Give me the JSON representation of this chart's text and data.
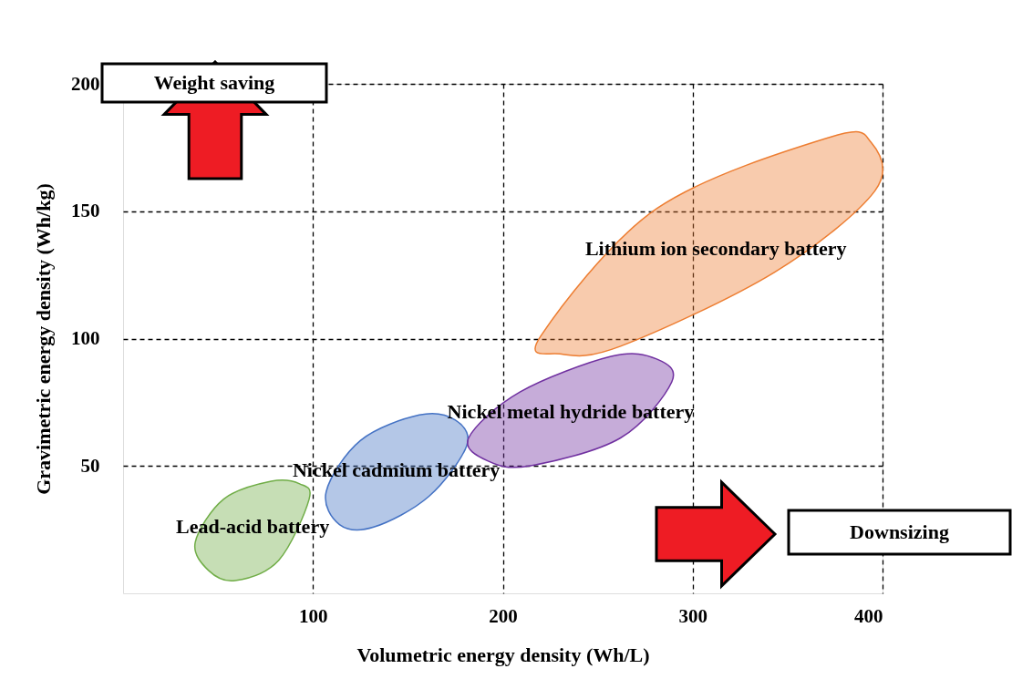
{
  "chart_data": {
    "type": "area",
    "xlabel": "Volumetric energy density (Wh/L)",
    "ylabel": "Gravimetric energy density (Wh/kg)",
    "xlim": [
      0,
      400
    ],
    "ylim": [
      0,
      200
    ],
    "xticks": [
      100,
      200,
      300,
      400
    ],
    "yticks": [
      50,
      100,
      150,
      200
    ],
    "grid": true,
    "legend": false,
    "marker": "none",
    "line_style": "solid",
    "annotations": [
      "Weight saving",
      "Downsizing"
    ],
    "series": [
      {
        "name": "Lead-acid battery",
        "color": "#70ad47",
        "x": [
          38,
          45,
          59,
          82,
          98,
          93,
          78,
          53
        ],
        "values": [
          20,
          9,
          5,
          13,
          37,
          43,
          44,
          37
        ]
      },
      {
        "name": "Nickel cadmium battery",
        "color": "#4472c4",
        "x": [
          107,
          114,
          132,
          161,
          181,
          175,
          156,
          125
        ],
        "values": [
          40,
          27,
          26,
          38,
          58,
          68,
          70,
          60
        ]
      },
      {
        "name": "Nickel metal hydride battery",
        "color": "#7030a0",
        "x": [
          182,
          192,
          214,
          262,
          289,
          281,
          257,
          209
        ],
        "values": [
          61,
          52,
          50,
          61,
          83,
          92,
          93,
          79
        ]
      },
      {
        "name": "Lithium ion secondary battery",
        "color": "#ed7d31",
        "x": [
          220,
          230,
          262,
          343,
          396,
          394,
          372,
          281
        ],
        "values": [
          101,
          94,
          97,
          126,
          158,
          177,
          179,
          151
        ]
      }
    ]
  }
}
